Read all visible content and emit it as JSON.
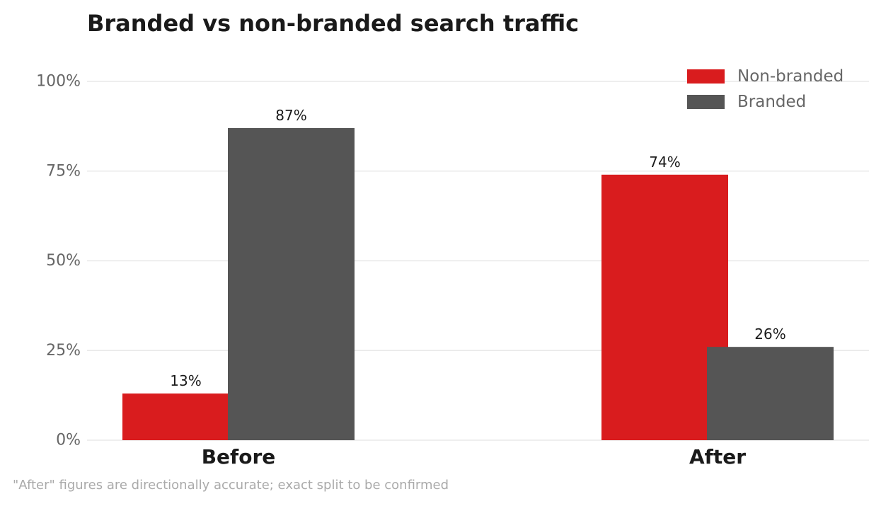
{
  "chart_data": {
    "type": "bar",
    "title": "Branded vs non-branded search traffic",
    "categories": [
      "Before",
      "After"
    ],
    "series": [
      {
        "name": "Non-branded",
        "values": [
          13,
          74
        ],
        "labels": [
          "13%",
          "74%"
        ],
        "color": "#d91c1e"
      },
      {
        "name": "Branded",
        "values": [
          87,
          26
        ],
        "labels": [
          "87%",
          "26%"
        ],
        "color": "#555555"
      }
    ],
    "ylim": [
      0,
      100
    ],
    "yticks": [
      0,
      25,
      50,
      75,
      100
    ],
    "ytick_labels": [
      "0%",
      "25%",
      "50%",
      "75%",
      "100%"
    ],
    "xlabel": "",
    "ylabel": "",
    "grid": true,
    "legend_position": "top-right",
    "footnote": "\"After\" figures are directionally accurate; exact split to be confirmed"
  }
}
